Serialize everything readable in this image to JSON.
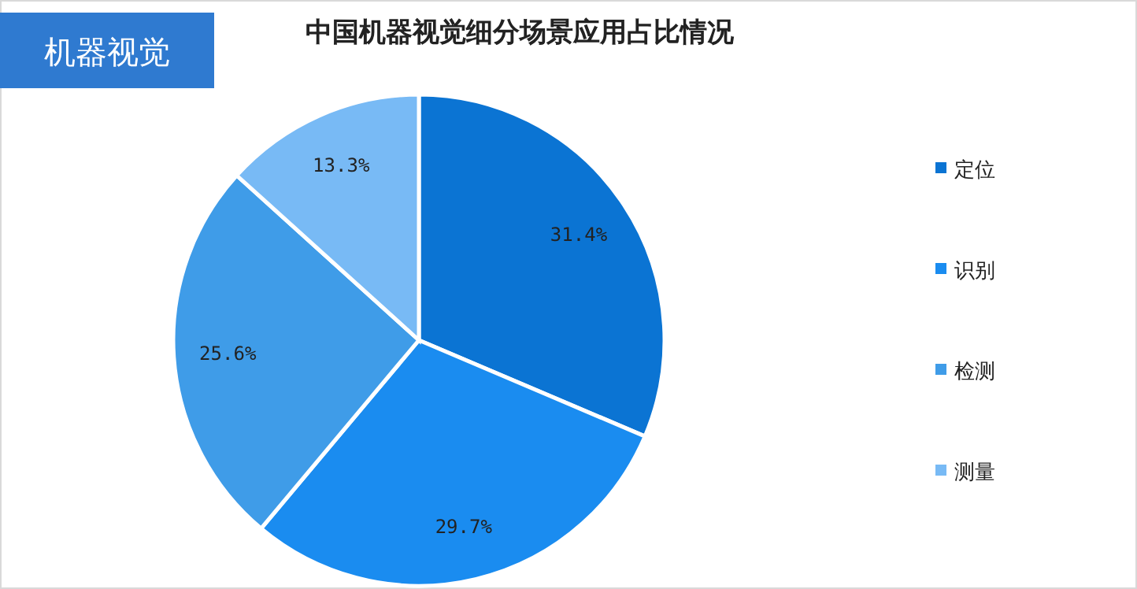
{
  "chart_data": {
    "type": "pie",
    "title": "中国机器视觉细分场景应用占比情况",
    "categories": [
      "定位",
      "识别",
      "检测",
      "测量"
    ],
    "values": [
      31.4,
      29.7,
      25.6,
      13.3
    ],
    "value_labels": [
      "31.4%",
      "29.7%",
      "25.6%",
      "13.3%"
    ],
    "colors": [
      "#0b74d3",
      "#1a8cf0",
      "#3f9ce8",
      "#78baf5"
    ],
    "legend": "right",
    "annotations": [
      "机器视觉"
    ]
  }
}
